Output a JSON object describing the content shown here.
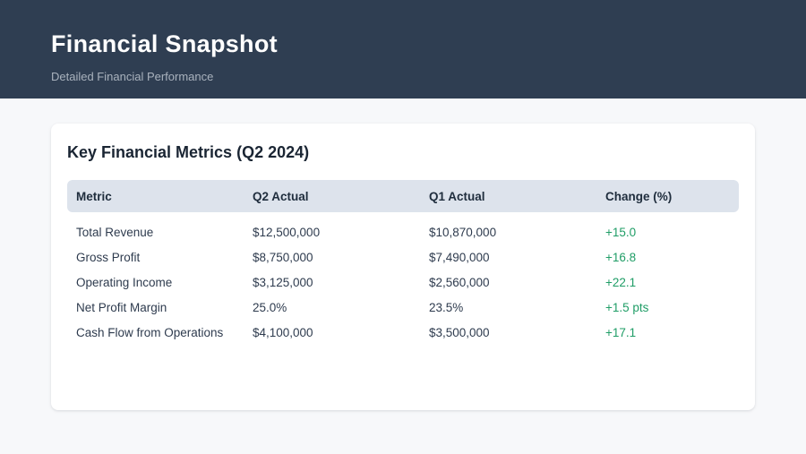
{
  "header": {
    "title": "Financial Snapshot",
    "subtitle": "Detailed Financial Performance"
  },
  "card": {
    "title": "Key Financial Metrics (Q2 2024)",
    "table": {
      "columns": [
        "Metric",
        "Q2 Actual",
        "Q1 Actual",
        "Change (%)"
      ],
      "rows": [
        {
          "metric": "Total Revenue",
          "q2_actual": "$12,500,000",
          "q1_actual": "$10,870,000",
          "change": "+15.0"
        },
        {
          "metric": "Gross Profit",
          "q2_actual": "$8,750,000",
          "q1_actual": "$7,490,000",
          "change": "+16.8"
        },
        {
          "metric": "Operating Income",
          "q2_actual": "$3,125,000",
          "q1_actual": "$2,560,000",
          "change": "+22.1"
        },
        {
          "metric": "Net Profit Margin",
          "q2_actual": "25.0%",
          "q1_actual": "23.5%",
          "change": "+1.5 pts"
        },
        {
          "metric": "Cash Flow from Operations",
          "q2_actual": "$4,100,000",
          "q1_actual": "$3,500,000",
          "change": "+17.1"
        }
      ]
    }
  },
  "colors": {
    "header_bg": "#2f3e52",
    "subtitle_text": "#a9b2bd",
    "table_header_bg": "#dde3ec",
    "positive_change": "#1f9d66",
    "body_text": "#2e3b4e",
    "page_bg": "#f7f8fa",
    "card_bg": "#ffffff"
  }
}
